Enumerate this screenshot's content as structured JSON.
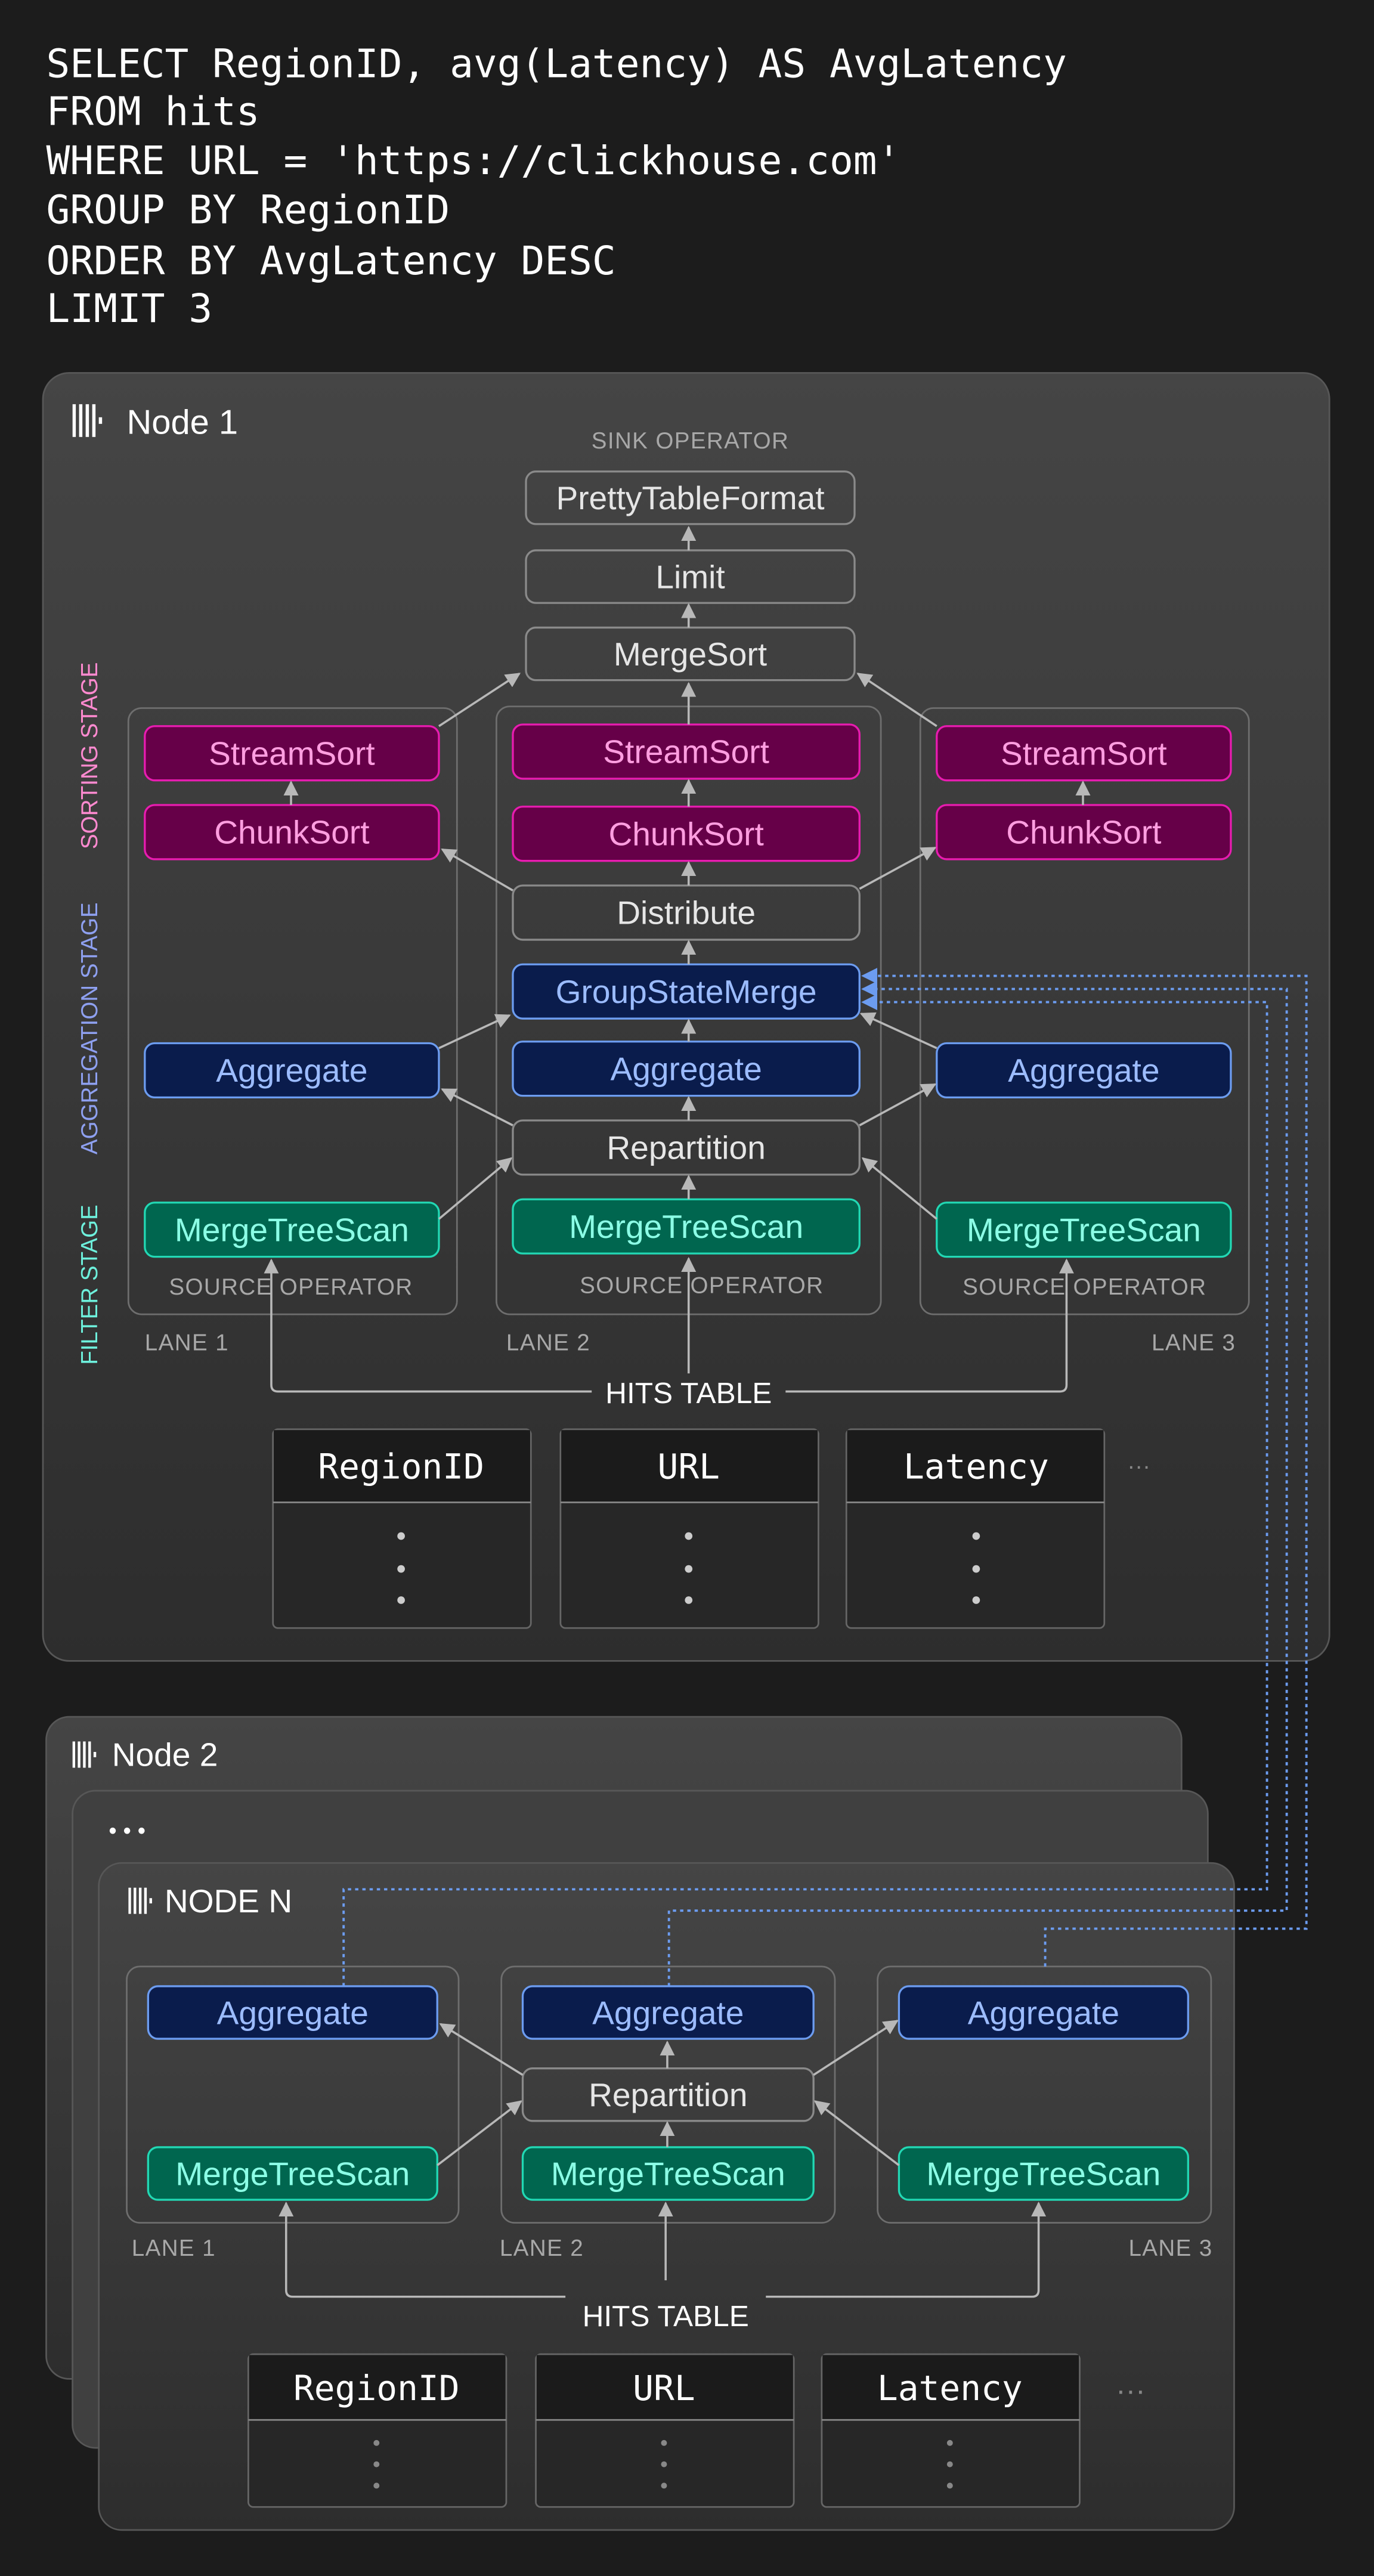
{
  "query": {
    "lines": [
      "SELECT RegionID, avg(Latency) AS AvgLatency",
      "FROM hits",
      "WHERE URL = 'https://clickhouse.com'",
      "GROUP BY RegionID",
      "ORDER BY AvgLatency DESC",
      "LIMIT 3"
    ]
  },
  "operators": {
    "pretty": "PrettyTableFormat",
    "limit": "Limit",
    "mergesort": "MergeSort",
    "streamsort": "StreamSort",
    "chunksort": "ChunkSort",
    "distribute": "Distribute",
    "groupstatemerge": "GroupStateMerge",
    "aggregate": "Aggregate",
    "repartition": "Repartition",
    "mergetreescan": "MergeTreeScan"
  },
  "node1": {
    "title": "Node 1",
    "sink_label": "SINK OPERATOR",
    "source_label": "SOURCE OPERATOR",
    "lanes": [
      "LANE 1",
      "LANE 2",
      "LANE 3"
    ],
    "stages": {
      "sorting": "SORTING STAGE",
      "aggregation": "AGGREGATION STAGE",
      "filter": "FILTER STAGE"
    },
    "table_label": "HITS TABLE",
    "columns": [
      "RegionID",
      "URL",
      "Latency"
    ],
    "more_columns": "···"
  },
  "node2": {
    "title": "Node 2"
  },
  "node_ellipsis": "• • •",
  "nodeN": {
    "title": "NODE N",
    "lanes": [
      "LANE 1",
      "LANE 2",
      "LANE 3"
    ],
    "table_label": "HITS TABLE",
    "columns": [
      "RegionID",
      "URL",
      "Latency"
    ],
    "more_columns": "···"
  },
  "icons": {
    "node": "clickhouse-logo-icon"
  },
  "colors": {
    "background": "#1c1c1c",
    "sorting": "#e81cb0",
    "aggregation": "#6c9cf0",
    "filter": "#22d8b4",
    "neutral": "#8a8a8a"
  }
}
